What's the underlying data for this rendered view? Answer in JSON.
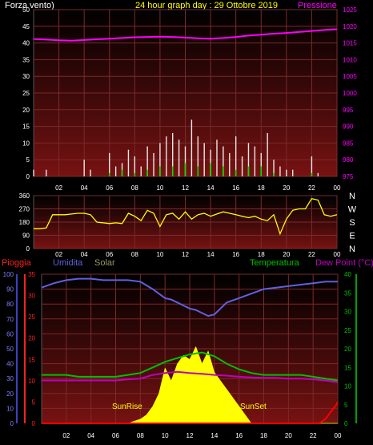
{
  "header": {
    "left_label": "Forza vento)",
    "title": "24 hour graph day : 29 Ottobre 2019",
    "right_label": "Pressione"
  },
  "colors": {
    "background": "#000000",
    "plot_bg_top": "#000000",
    "plot_bg_bottom": "#7a1010",
    "grid": "#7a2b2b",
    "wind": "#e8e8e8",
    "wind_gust": "#00e000",
    "pressure": "#ff00ff",
    "direction": "#ffff00",
    "rain_label": "#ff2020",
    "humidity": "#6060e0",
    "solar": "#ffff00",
    "temperature": "#00c000",
    "dew_point": "#c000c0",
    "rain": "#ff0000",
    "title": "#ffff00",
    "ticks": "#ffffff",
    "pressure_ticks": "#ff00ff",
    "temp_ticks": "#00c000",
    "rain_ticks": "#ff2020",
    "humidity_ticks": "#8080ff"
  },
  "chart_data": [
    {
      "type": "line",
      "title": "24 hour graph day : 29 Ottobre 2019",
      "x_ticks": [
        "02",
        "04",
        "06",
        "08",
        "10",
        "12",
        "14",
        "16",
        "18",
        "20",
        "22",
        "00"
      ],
      "y_left": {
        "label": "Forza vento)",
        "range": [
          0,
          50
        ],
        "ticks": [
          "0",
          "5",
          "10",
          "15",
          "20",
          "25",
          "30",
          "35",
          "40",
          "45",
          "50"
        ]
      },
      "y_right": {
        "label": "Pressione",
        "range": [
          975,
          1025
        ],
        "ticks": [
          "975",
          "980",
          "985",
          "990",
          "995",
          "1000",
          "1005",
          "1010",
          "1015",
          "1020",
          "1025"
        ]
      },
      "grid": true,
      "series": [
        {
          "name": "Pressione",
          "axis": "right",
          "x": [
            0,
            1,
            2,
            3,
            4,
            5,
            6,
            7,
            8,
            9,
            10,
            11,
            12,
            13,
            14,
            15,
            16,
            17,
            18,
            19,
            20,
            21,
            22,
            23,
            24
          ],
          "values": [
            1016.2,
            1016.0,
            1015.8,
            1015.7,
            1015.9,
            1016.1,
            1016.3,
            1016.5,
            1016.7,
            1016.8,
            1016.9,
            1016.8,
            1016.6,
            1016.4,
            1016.3,
            1016.5,
            1016.8,
            1017.2,
            1017.5,
            1017.8,
            1018.0,
            1018.3,
            1018.6,
            1018.9,
            1019.1
          ]
        },
        {
          "name": "Forza vento",
          "axis": "left",
          "x": [
            0,
            0.5,
            1,
            1.5,
            2,
            2.5,
            3,
            3.5,
            4,
            4.5,
            5,
            5.5,
            6,
            6.5,
            7,
            7.5,
            8,
            8.5,
            9,
            9.5,
            10,
            10.5,
            11,
            11.5,
            12,
            12.5,
            13,
            13.5,
            14,
            14.5,
            15,
            15.5,
            16,
            16.5,
            17,
            17.5,
            18,
            18.5,
            19,
            19.5,
            20,
            20.5,
            21,
            21.5,
            22,
            22.5,
            23,
            23.5,
            24
          ],
          "values": [
            2,
            0,
            2,
            0,
            0,
            0,
            0,
            0,
            5,
            2,
            0,
            0,
            7,
            3,
            4,
            8,
            6,
            3,
            9,
            7,
            10,
            12,
            13,
            11,
            9,
            17,
            12,
            10,
            8,
            11,
            9,
            7,
            12,
            6,
            10,
            9,
            7,
            13,
            5,
            3,
            2,
            2,
            0,
            0,
            6,
            1,
            0,
            0,
            0
          ]
        },
        {
          "name": "Raffica",
          "axis": "left",
          "x": [
            0,
            2,
            4,
            6,
            7,
            8,
            9,
            10,
            11,
            12,
            13,
            14,
            15,
            16,
            17,
            18,
            19,
            20,
            22,
            23,
            24
          ],
          "values": [
            0,
            0,
            0,
            1,
            2,
            1,
            2,
            3,
            3,
            4,
            3,
            4,
            3,
            2,
            3,
            3,
            1,
            0,
            1,
            0,
            0
          ]
        }
      ]
    },
    {
      "type": "line",
      "x_ticks": [
        "02",
        "04",
        "06",
        "08",
        "10",
        "12",
        "14",
        "16",
        "18",
        "20",
        "22",
        "00"
      ],
      "y_left": {
        "range": [
          0,
          360
        ],
        "ticks": [
          "0",
          "90",
          "180",
          "270",
          "360"
        ]
      },
      "y_right": {
        "ticks": [
          "N",
          "W",
          "S",
          "E",
          "N"
        ]
      },
      "grid": true,
      "series": [
        {
          "name": "Direzione vento",
          "x": [
            0,
            0.5,
            1,
            1.5,
            2,
            2.5,
            3,
            3.5,
            4,
            4.5,
            5,
            5.5,
            6,
            6.5,
            7,
            7.5,
            8,
            8.5,
            9,
            9.5,
            10,
            10.5,
            11,
            11.5,
            12,
            12.5,
            13,
            13.5,
            14,
            14.5,
            15,
            15.5,
            16,
            16.5,
            17,
            17.5,
            18,
            18.5,
            19,
            19.5,
            20,
            20.5,
            21,
            21.5,
            22,
            22.5,
            23,
            23.5,
            24
          ],
          "values": [
            135,
            135,
            140,
            230,
            230,
            230,
            235,
            240,
            240,
            230,
            180,
            175,
            170,
            175,
            170,
            240,
            220,
            190,
            260,
            240,
            150,
            230,
            240,
            200,
            250,
            200,
            230,
            240,
            220,
            235,
            250,
            240,
            230,
            220,
            210,
            220,
            200,
            190,
            230,
            100,
            200,
            260,
            270,
            270,
            340,
            330,
            230,
            220,
            230
          ]
        }
      ]
    },
    {
      "type": "line",
      "legend": [
        "Pioggia",
        "Umidita",
        "Solar",
        "Temperatura",
        "Dew Point (°C)"
      ],
      "x_ticks": [
        "02",
        "04",
        "06",
        "08",
        "10",
        "12",
        "14",
        "16",
        "18",
        "20",
        "22",
        "00"
      ],
      "y_humidity": {
        "label": "Umidita",
        "range": [
          0,
          100
        ],
        "ticks": [
          "0",
          "10",
          "20",
          "30",
          "40",
          "50",
          "60",
          "70",
          "80",
          "90",
          "100"
        ]
      },
      "y_rain": {
        "label": "Pioggia",
        "range": [
          0,
          35
        ],
        "ticks": [
          "0",
          "5",
          "10",
          "15",
          "20",
          "25",
          "30",
          "35"
        ]
      },
      "y_temp": {
        "label": "Temperatura",
        "range": [
          0,
          40
        ],
        "ticks": [
          "0",
          "5",
          "10",
          "15",
          "20",
          "25",
          "30",
          "35",
          "40"
        ]
      },
      "annotations": [
        "SunRise",
        "SunSet"
      ],
      "grid": true,
      "series": [
        {
          "name": "Umidita",
          "axis": "humidity",
          "x": [
            0,
            1,
            2,
            3,
            4,
            5,
            6,
            7,
            8,
            9,
            10,
            10.5,
            11,
            11.5,
            12,
            12.5,
            13,
            13.5,
            14,
            14.5,
            15,
            16,
            17,
            18,
            19,
            20,
            21,
            22,
            23,
            24
          ],
          "values": [
            91,
            94,
            96,
            97,
            97,
            96,
            96,
            96,
            95,
            90,
            84,
            83,
            81,
            79,
            77,
            76,
            74,
            72,
            73,
            77,
            81,
            84,
            87,
            90,
            91,
            92,
            93,
            94,
            95,
            95
          ]
        },
        {
          "name": "Temperatura",
          "axis": "temp",
          "x": [
            0,
            1,
            2,
            3,
            4,
            5,
            6,
            7,
            8,
            9,
            10,
            11,
            12,
            13,
            14,
            15,
            16,
            17,
            18,
            19,
            20,
            21,
            22,
            23,
            24
          ],
          "values": [
            13,
            13,
            13,
            12.5,
            12.5,
            12.5,
            12.5,
            13,
            13.5,
            15,
            16.5,
            17.5,
            18.5,
            19,
            18,
            16,
            14.5,
            13.5,
            13,
            13,
            13,
            13,
            12.5,
            12,
            11.5
          ]
        },
        {
          "name": "Dew Point (°C)",
          "axis": "temp",
          "x": [
            0,
            1,
            2,
            3,
            4,
            5,
            6,
            7,
            8,
            9,
            10,
            11,
            12,
            13,
            14,
            15,
            16,
            17,
            18,
            19,
            20,
            21,
            22,
            23,
            24
          ],
          "values": [
            11.5,
            11.5,
            11.5,
            11.5,
            11.5,
            11.5,
            11.5,
            11.8,
            12,
            13,
            13.5,
            13.8,
            13.5,
            13.3,
            13,
            12.8,
            12.5,
            12.3,
            12.2,
            12.2,
            12,
            12,
            11.8,
            11.5,
            11
          ]
        },
        {
          "name": "Solar",
          "axis": "rain",
          "x": [
            0,
            7,
            7.5,
            8,
            8.5,
            9,
            9.5,
            10,
            10.5,
            11,
            11.5,
            12,
            12.5,
            13,
            13.5,
            14,
            14.5,
            15,
            15.5,
            16,
            16.5,
            17,
            24
          ],
          "values": [
            0,
            0,
            0.5,
            1,
            2,
            4,
            7,
            13,
            10,
            14,
            16,
            15,
            18,
            14,
            17,
            12,
            10,
            8,
            6,
            4,
            2,
            0,
            0
          ]
        },
        {
          "name": "Pioggia",
          "axis": "rain",
          "x": [
            0,
            22.5,
            23,
            23.5,
            23.8,
            24
          ],
          "values": [
            0,
            0,
            1,
            3,
            4,
            5
          ]
        }
      ]
    }
  ],
  "bottom_panel": {
    "rain_label": "Pioggia",
    "humidity_label": "Umidita",
    "solar_label": "Solar",
    "temp_label": "Temperatura",
    "dew_label": "Dew Point (°C)",
    "sunrise": "SunRise",
    "sunset": "SunSet"
  }
}
